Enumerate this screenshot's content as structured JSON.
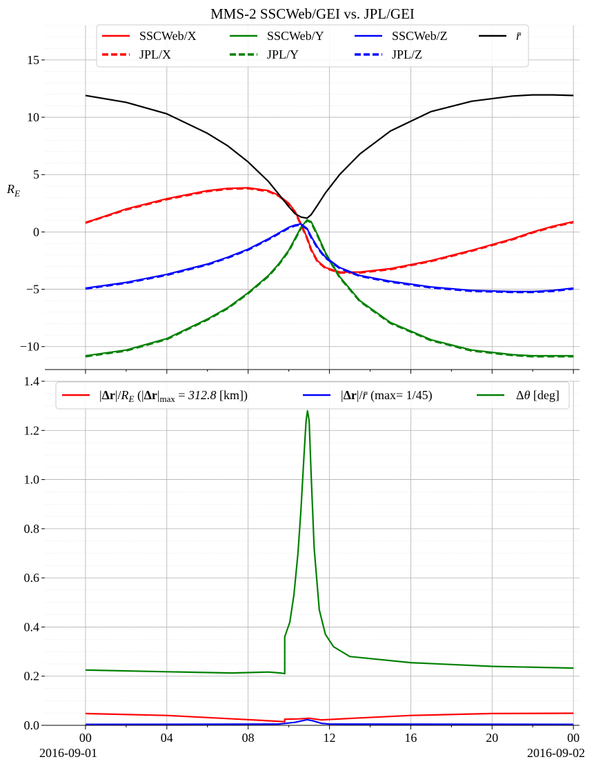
{
  "chart_data": [
    {
      "type": "line",
      "title": "MMS-2 SSCWeb/GEI vs. JPL/GEI",
      "ylabel": "R_E",
      "ylabel_main": "R",
      "ylabel_sub": "E",
      "ylim": [
        -12,
        18
      ],
      "yticks": [
        -10,
        -5,
        0,
        5,
        10,
        15
      ],
      "ytick_labels": [
        "−10",
        "−5",
        "0",
        "5",
        "10",
        "15"
      ],
      "xlim_hours": [
        -2,
        24.3
      ],
      "xticks_hours": [
        0,
        4,
        8,
        12,
        16,
        20,
        24
      ],
      "grid": true,
      "legend_placement": "top-center",
      "legend": [
        {
          "label": "SSCWeb/X",
          "color": "#ff0000",
          "dash": false
        },
        {
          "label": "SSCWeb/Y",
          "color": "#008000",
          "dash": false
        },
        {
          "label": "SSCWeb/Z",
          "color": "#0000ff",
          "dash": false
        },
        {
          "label": "r̄",
          "color": "#000000",
          "dash": false
        },
        {
          "label": "JPL/X",
          "color": "#ff0000",
          "dash": true
        },
        {
          "label": "JPL/Y",
          "color": "#008000",
          "dash": true
        },
        {
          "label": "JPL/Z",
          "color": "#0000ff",
          "dash": true
        }
      ],
      "x": [
        0,
        2,
        4,
        6,
        7,
        8,
        9,
        9.5,
        10,
        10.3,
        10.6,
        10.9,
        11.1,
        11.4,
        11.8,
        12.5,
        13.5,
        15,
        17,
        19,
        21,
        22,
        23,
        24
      ],
      "series": [
        {
          "name": "SSCWeb/X",
          "color": "#ff0000",
          "dash": false,
          "values": [
            0.8,
            2.0,
            2.9,
            3.6,
            3.8,
            3.85,
            3.6,
            3.2,
            2.5,
            1.8,
            0.7,
            -0.5,
            -1.5,
            -2.5,
            -3.1,
            -3.5,
            -3.5,
            -3.2,
            -2.5,
            -1.6,
            -0.6,
            0.0,
            0.5,
            0.9
          ]
        },
        {
          "name": "JPL/X",
          "color": "#ff0000",
          "dash": true,
          "values": [
            0.8,
            1.95,
            2.85,
            3.55,
            3.75,
            3.8,
            3.55,
            3.15,
            2.45,
            1.75,
            0.65,
            -0.55,
            -1.55,
            -2.55,
            -3.15,
            -3.55,
            -3.55,
            -3.25,
            -2.55,
            -1.65,
            -0.65,
            -0.05,
            0.45,
            0.85
          ]
        },
        {
          "name": "SSCWeb/Y",
          "color": "#008000",
          "dash": false,
          "values": [
            -10.8,
            -10.3,
            -9.3,
            -7.6,
            -6.6,
            -5.3,
            -3.8,
            -2.8,
            -1.6,
            -0.6,
            0.4,
            1.05,
            0.9,
            -0.2,
            -1.8,
            -3.9,
            -6.0,
            -7.9,
            -9.4,
            -10.3,
            -10.7,
            -10.8,
            -10.8,
            -10.8
          ]
        },
        {
          "name": "JPL/Y",
          "color": "#008000",
          "dash": true,
          "values": [
            -10.85,
            -10.35,
            -9.35,
            -7.65,
            -6.65,
            -5.35,
            -3.85,
            -2.85,
            -1.65,
            -0.65,
            0.35,
            1.0,
            0.85,
            -0.25,
            -1.85,
            -3.95,
            -6.05,
            -7.95,
            -9.45,
            -10.35,
            -10.75,
            -10.85,
            -10.85,
            -10.85
          ]
        },
        {
          "name": "SSCWeb/Z",
          "color": "#0000ff",
          "dash": false,
          "values": [
            -4.9,
            -4.4,
            -3.7,
            -2.8,
            -2.2,
            -1.5,
            -0.6,
            -0.1,
            0.4,
            0.6,
            0.7,
            0.3,
            -0.4,
            -1.3,
            -2.2,
            -3.1,
            -3.8,
            -4.3,
            -4.8,
            -5.1,
            -5.2,
            -5.2,
            -5.1,
            -4.9
          ]
        },
        {
          "name": "JPL/Z",
          "color": "#0000ff",
          "dash": true,
          "values": [
            -4.95,
            -4.45,
            -3.75,
            -2.85,
            -2.25,
            -1.55,
            -0.65,
            -0.15,
            0.35,
            0.55,
            0.65,
            0.25,
            -0.45,
            -1.35,
            -2.25,
            -3.15,
            -3.85,
            -4.35,
            -4.85,
            -5.15,
            -5.25,
            -5.25,
            -5.15,
            -4.95
          ]
        },
        {
          "name": "r̄",
          "color": "#000000",
          "dash": false,
          "values": [
            11.9,
            11.3,
            10.3,
            8.6,
            7.5,
            6.1,
            4.4,
            3.3,
            2.2,
            1.6,
            1.3,
            1.2,
            1.5,
            2.3,
            3.4,
            5.0,
            6.8,
            8.8,
            10.5,
            11.4,
            11.85,
            11.95,
            11.95,
            11.9
          ]
        }
      ]
    },
    {
      "type": "line",
      "ylim": [
        0,
        1.4
      ],
      "yticks": [
        0.0,
        0.2,
        0.4,
        0.6,
        0.8,
        1.0,
        1.2,
        1.4
      ],
      "ytick_labels": [
        "0.0",
        "0.2",
        "0.4",
        "0.6",
        "0.8",
        "1.0",
        "1.2",
        "1.4"
      ],
      "xlim_hours": [
        -2,
        24.3
      ],
      "xticks_hours": [
        0,
        4,
        8,
        12,
        16,
        20,
        24
      ],
      "xtick_labels": [
        "00",
        "04",
        "08",
        "12",
        "16",
        "20",
        "00"
      ],
      "xdate_labels": [
        "2016-09-01",
        "2016-09-02"
      ],
      "grid": true,
      "legend_placement": "top",
      "legend": [
        {
          "label": "|Δr|/R_E (|Δr|max = 312.8 [km])",
          "color": "#ff0000"
        },
        {
          "label": "|Δr|/r̄  (max= 1/45)",
          "color": "#0000ff"
        },
        {
          "label": "Δθ [deg]",
          "color": "#008000"
        }
      ],
      "dr_max_km": "312.8",
      "rel_max": "1/45",
      "series": [
        {
          "name": "|Δr|/R_E",
          "color": "#ff0000",
          "x": [
            0,
            4,
            8,
            9.8,
            9.8,
            10.5,
            11.0,
            11.6,
            13,
            16,
            20,
            24
          ],
          "values": [
            0.048,
            0.04,
            0.023,
            0.015,
            0.025,
            0.026,
            0.029,
            0.022,
            0.028,
            0.04,
            0.048,
            0.049
          ]
        },
        {
          "name": "|Δr|/r̄",
          "color": "#0000ff",
          "x": [
            0,
            9.5,
            10.3,
            10.9,
            11.2,
            11.6,
            12,
            24
          ],
          "values": [
            0.004,
            0.005,
            0.012,
            0.023,
            0.018,
            0.008,
            0.005,
            0.004
          ]
        },
        {
          "name": "Δθ",
          "color": "#008000",
          "x": [
            0,
            4,
            7.2,
            9,
            9.6,
            9.8,
            9.8,
            10.05,
            10.25,
            10.45,
            10.6,
            10.75,
            10.85,
            10.92,
            11.0,
            11.1,
            11.25,
            11.5,
            11.8,
            12.2,
            13,
            16,
            20,
            24
          ],
          "values": [
            0.225,
            0.218,
            0.213,
            0.217,
            0.213,
            0.21,
            0.36,
            0.42,
            0.53,
            0.7,
            0.88,
            1.1,
            1.24,
            1.28,
            1.24,
            1.02,
            0.72,
            0.47,
            0.37,
            0.32,
            0.28,
            0.255,
            0.24,
            0.233
          ]
        }
      ]
    }
  ]
}
